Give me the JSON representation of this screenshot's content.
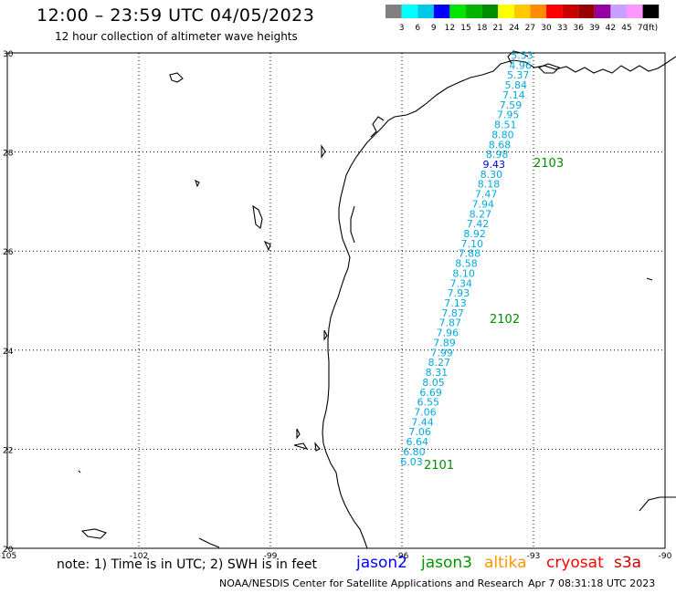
{
  "header": {
    "title": "12:00 – 23:59 UTC 04/05/2023",
    "subtitle": "12 hour collection of altimeter wave heights"
  },
  "color_scale": {
    "labels": [
      "3",
      "6",
      "9",
      "12",
      "15",
      "18",
      "21",
      "24",
      "27",
      "30",
      "33",
      "36",
      "39",
      "42",
      "45",
      "70",
      "(ft)"
    ],
    "colors": [
      "#808080",
      "#00ffff",
      "#00c8e6",
      "#0000ff",
      "#00e600",
      "#00b400",
      "#008c00",
      "#ffff00",
      "#ffc800",
      "#ff8c00",
      "#ff0000",
      "#c80000",
      "#960000",
      "#9600a0",
      "#c8a0ff",
      "#ff96ff",
      "#000000"
    ]
  },
  "axes": {
    "lat_labels": [
      "30",
      "28",
      "26",
      "24",
      "22",
      "20"
    ],
    "lon_labels": [
      "-105",
      "-102",
      "-99",
      "-96",
      "-93",
      "-90"
    ]
  },
  "track_color": "#00aadd",
  "peak_color": "#0000c0",
  "pass_color": "#008c00",
  "track": [
    {
      "lon": -93.26,
      "lat": 29.88,
      "value": "5.53"
    },
    {
      "lon": -93.3,
      "lat": 29.68,
      "value": "4.96"
    },
    {
      "lon": -93.35,
      "lat": 29.48,
      "value": "5.37"
    },
    {
      "lon": -93.4,
      "lat": 29.28,
      "value": "5.84"
    },
    {
      "lon": -93.45,
      "lat": 29.08,
      "value": "7.14"
    },
    {
      "lon": -93.52,
      "lat": 28.88,
      "value": "7.59"
    },
    {
      "lon": -93.58,
      "lat": 28.68,
      "value": "7.95"
    },
    {
      "lon": -93.64,
      "lat": 28.48,
      "value": "8.51"
    },
    {
      "lon": -93.7,
      "lat": 28.28,
      "value": "8.80"
    },
    {
      "lon": -93.77,
      "lat": 28.08,
      "value": "8.68"
    },
    {
      "lon": -93.83,
      "lat": 27.88,
      "value": "8.98"
    },
    {
      "lon": -93.9,
      "lat": 27.68,
      "value": "9.43",
      "peak": true
    },
    {
      "lon": -93.96,
      "lat": 27.48,
      "value": "8.30"
    },
    {
      "lon": -94.02,
      "lat": 27.28,
      "value": "8.18"
    },
    {
      "lon": -94.08,
      "lat": 27.08,
      "value": "7.47"
    },
    {
      "lon": -94.15,
      "lat": 26.88,
      "value": "7.94"
    },
    {
      "lon": -94.21,
      "lat": 26.68,
      "value": "8.27"
    },
    {
      "lon": -94.27,
      "lat": 26.48,
      "value": "7.42"
    },
    {
      "lon": -94.34,
      "lat": 26.28,
      "value": "8.92"
    },
    {
      "lon": -94.4,
      "lat": 26.08,
      "value": "7.10"
    },
    {
      "lon": -94.46,
      "lat": 25.88,
      "value": "7.88"
    },
    {
      "lon": -94.53,
      "lat": 25.68,
      "value": "8.58"
    },
    {
      "lon": -94.59,
      "lat": 25.48,
      "value": "8.10"
    },
    {
      "lon": -94.65,
      "lat": 25.28,
      "value": "7.34"
    },
    {
      "lon": -94.71,
      "lat": 25.08,
      "value": "7.93"
    },
    {
      "lon": -94.78,
      "lat": 24.88,
      "value": "7.13"
    },
    {
      "lon": -94.84,
      "lat": 24.68,
      "value": "7.87"
    },
    {
      "lon": -94.9,
      "lat": 24.48,
      "value": "7.87"
    },
    {
      "lon": -94.96,
      "lat": 24.28,
      "value": "7.96"
    },
    {
      "lon": -95.03,
      "lat": 24.08,
      "value": "7.89"
    },
    {
      "lon": -95.09,
      "lat": 23.88,
      "value": "7.99"
    },
    {
      "lon": -95.15,
      "lat": 23.68,
      "value": "8.27"
    },
    {
      "lon": -95.21,
      "lat": 23.48,
      "value": "8.31"
    },
    {
      "lon": -95.28,
      "lat": 23.28,
      "value": "8.05"
    },
    {
      "lon": -95.34,
      "lat": 23.08,
      "value": "6.69"
    },
    {
      "lon": -95.4,
      "lat": 22.88,
      "value": "6.55"
    },
    {
      "lon": -95.47,
      "lat": 22.68,
      "value": "7.06"
    },
    {
      "lon": -95.53,
      "lat": 22.48,
      "value": "7.44"
    },
    {
      "lon": -95.59,
      "lat": 22.28,
      "value": "7.06"
    },
    {
      "lon": -95.65,
      "lat": 22.08,
      "value": "6.64"
    },
    {
      "lon": -95.72,
      "lat": 21.88,
      "value": "6.80"
    },
    {
      "lon": -95.78,
      "lat": 21.68,
      "value": "6.03"
    }
  ],
  "passes": [
    {
      "label": "2103",
      "lon": -93.0,
      "lat": 27.7
    },
    {
      "label": "2102",
      "lon": -94.0,
      "lat": 24.55
    },
    {
      "label": "2101",
      "lon": -95.5,
      "lat": 21.6
    }
  ],
  "footer": {
    "note": "note:  1) Time is in UTC;  2) SWH is in feet",
    "satellites": [
      {
        "name": "jason2",
        "color": "#0000ff"
      },
      {
        "name": "jason3",
        "color": "#009600"
      },
      {
        "name": "altika",
        "color": "#ff9600"
      },
      {
        "name": "cryosat",
        "color": "#ff0000"
      },
      {
        "name": "s3a",
        "color": "#c80000"
      }
    ],
    "credit": "NOAA/NESDIS Center for Satellite Applications and Research",
    "generated": "Apr  7 08:31:18 UTC 2023"
  }
}
